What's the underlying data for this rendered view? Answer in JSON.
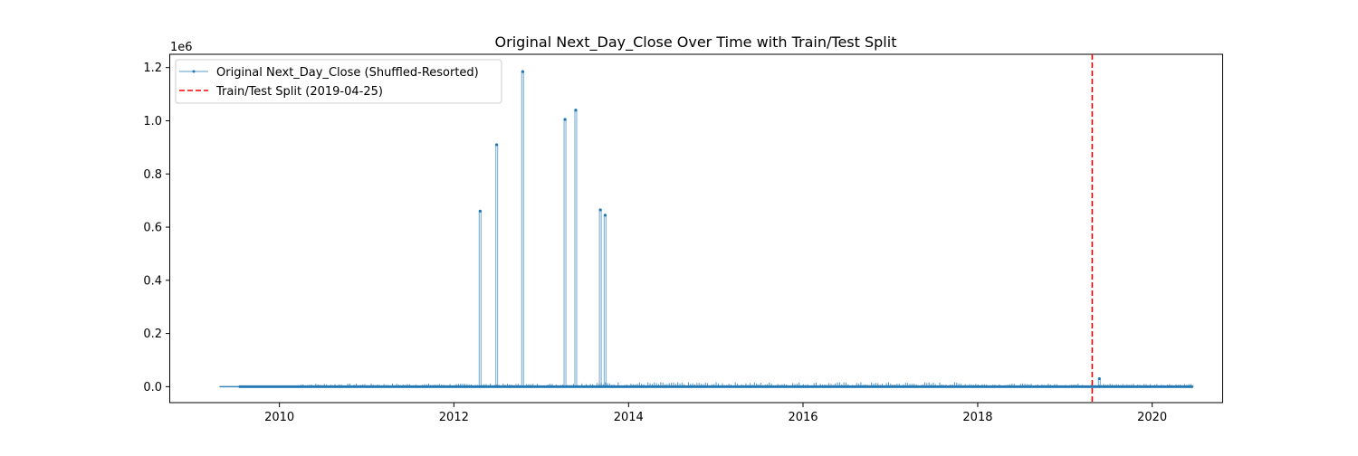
{
  "chart_data": {
    "type": "line",
    "title": "Original Next_Day_Close Over Time with Train/Test Split",
    "xlabel": "",
    "ylabel": "",
    "y_offset_label": "1e6",
    "x_range": [
      "2008-10-01",
      "2020-10-20"
    ],
    "y_range": [
      -0.06,
      1.25
    ],
    "y_scale_note": "values in units of 1e6",
    "x_ticks": [
      "2010",
      "2012",
      "2014",
      "2016",
      "2018",
      "2020"
    ],
    "y_ticks": [
      "0.0",
      "0.2",
      "0.4",
      "0.6",
      "0.8",
      "1.0",
      "1.2"
    ],
    "grid": false,
    "legend_position": "top-left",
    "series": [
      {
        "name": "Original Next_Day_Close (Shuffled-Resorted)",
        "color": "#1f77b4",
        "baseline_range": [
          "2009-04-25",
          "2020-06-20"
        ],
        "spikes": [
          {
            "date": "2012-04-20",
            "value": 0.66
          },
          {
            "date": "2012-06-28",
            "value": 0.91
          },
          {
            "date": "2012-10-15",
            "value": 1.185
          },
          {
            "date": "2013-04-10",
            "value": 1.005
          },
          {
            "date": "2013-05-25",
            "value": 1.04
          },
          {
            "date": "2013-09-05",
            "value": 0.665
          },
          {
            "date": "2013-09-25",
            "value": 0.645
          },
          {
            "date": "2019-05-25",
            "value": 0.03
          }
        ]
      },
      {
        "name": "Train/Test Split (2019-04-25)",
        "color": "#ff0000",
        "style": "dashed",
        "date": "2019-04-25"
      }
    ]
  }
}
